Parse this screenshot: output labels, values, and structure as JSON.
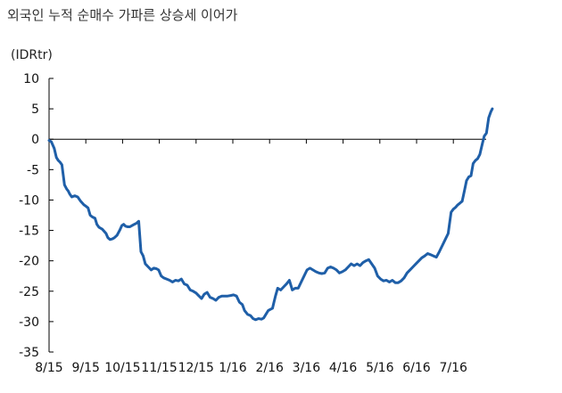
{
  "chart_data": {
    "type": "line",
    "title": "외국인 누적 순매수 가파른 상승세 이어가",
    "ylabel": "(IDRtr)",
    "xlabel": "",
    "ylim": [
      -35,
      10
    ],
    "yticks": [
      10,
      5,
      0,
      -5,
      -10,
      -15,
      -20,
      -25,
      -30,
      -35
    ],
    "ytick_labels": [
      "10",
      "5",
      "0",
      "-5",
      "-10",
      "-15",
      "-20",
      "-25",
      "-30",
      "-35"
    ],
    "xlim": [
      0,
      12.4
    ],
    "categories": [
      "8/15",
      "9/15",
      "10/15",
      "11/15",
      "12/15",
      "1/16",
      "2/16",
      "3/16",
      "4/16",
      "5/16",
      "6/16",
      "7/16"
    ],
    "grid": false,
    "line_color": "#1f5fa8",
    "series": [
      {
        "x": [
          0.0,
          0.06,
          0.14,
          0.2,
          0.25,
          0.3,
          0.35,
          0.42,
          0.48,
          0.52,
          0.56,
          0.62,
          0.7,
          0.78,
          0.86,
          0.95,
          1.0,
          1.06,
          1.12,
          1.18,
          1.25,
          1.3,
          1.36,
          1.45,
          1.55,
          1.6,
          1.66,
          1.72,
          1.78,
          1.85,
          1.92,
          1.98,
          2.03,
          2.08,
          2.14,
          2.2,
          2.26,
          2.32,
          2.38,
          2.44,
          2.5,
          2.56,
          2.62,
          2.7,
          2.78,
          2.85,
          2.92,
          2.98,
          3.05,
          3.12,
          3.2,
          3.28,
          3.36,
          3.44,
          3.52,
          3.6,
          3.68,
          3.76,
          3.84,
          3.92,
          4.0,
          4.08,
          4.15,
          4.22,
          4.3,
          4.38,
          4.46,
          4.54,
          4.62,
          4.7,
          4.78,
          4.86,
          4.94,
          5.02,
          5.1,
          5.18,
          5.26,
          5.32,
          5.4,
          5.48,
          5.55,
          5.62,
          5.7,
          5.78,
          5.84,
          5.9,
          5.96,
          6.02,
          6.08,
          6.12,
          6.16,
          6.22,
          6.3,
          6.38,
          6.46,
          6.54,
          6.62,
          6.7,
          6.78,
          6.86,
          6.94,
          7.02,
          7.1,
          7.18,
          7.26,
          7.34,
          7.42,
          7.5,
          7.58,
          7.66,
          7.74,
          7.82,
          7.9,
          7.98,
          8.06,
          8.14,
          8.22,
          8.3,
          8.38,
          8.46,
          8.54,
          8.62,
          8.7,
          8.78,
          8.86,
          8.94,
          9.02,
          9.1,
          9.18,
          9.26,
          9.34,
          9.42,
          9.5,
          9.58,
          9.66,
          9.74,
          9.82,
          9.9,
          9.98,
          10.06,
          10.14,
          10.22,
          10.3,
          10.38,
          10.46,
          10.54,
          10.62,
          10.7,
          10.78,
          10.86,
          10.94,
          11.0,
          11.06,
          11.12,
          11.18,
          11.24,
          11.3,
          11.36,
          11.42,
          11.48,
          11.54,
          11.6,
          11.66,
          11.72,
          11.78,
          11.84,
          11.9,
          11.96,
          12.02,
          12.06
        ],
        "values": [
          -0.2,
          -0.4,
          -1.5,
          -3.0,
          -3.5,
          -3.8,
          -4.2,
          -7.5,
          -8.2,
          -8.5,
          -9.0,
          -9.5,
          -9.3,
          -9.5,
          -10.2,
          -10.8,
          -11.0,
          -11.3,
          -12.5,
          -12.8,
          -13.0,
          -14.0,
          -14.5,
          -14.8,
          -15.5,
          -16.2,
          -16.5,
          -16.4,
          -16.2,
          -15.8,
          -15.0,
          -14.2,
          -14.0,
          -14.3,
          -14.4,
          -14.4,
          -14.2,
          -14.0,
          -13.8,
          -13.5,
          -18.5,
          -19.2,
          -20.5,
          -21.0,
          -21.5,
          -21.2,
          -21.3,
          -21.5,
          -22.5,
          -22.8,
          -23.0,
          -23.2,
          -23.5,
          -23.2,
          -23.3,
          -23.0,
          -23.8,
          -24.0,
          -24.8,
          -25.0,
          -25.3,
          -25.8,
          -26.2,
          -25.5,
          -25.2,
          -26.0,
          -26.2,
          -26.5,
          -26.0,
          -25.8,
          -25.8,
          -25.8,
          -25.7,
          -25.6,
          -25.8,
          -26.8,
          -27.2,
          -28.2,
          -28.8,
          -29.0,
          -29.5,
          -29.7,
          -29.5,
          -29.6,
          -29.4,
          -28.8,
          -28.2,
          -28.0,
          -27.8,
          -26.8,
          -25.8,
          -24.5,
          -24.8,
          -24.3,
          -23.8,
          -23.2,
          -24.8,
          -24.5,
          -24.5,
          -23.5,
          -22.5,
          -21.5,
          -21.2,
          -21.5,
          -21.8,
          -22.0,
          -22.1,
          -22.0,
          -21.2,
          -21.0,
          -21.2,
          -21.5,
          -22.0,
          -21.8,
          -21.5,
          -21.0,
          -20.5,
          -20.8,
          -20.5,
          -20.8,
          -20.3,
          -20.0,
          -19.8,
          -20.5,
          -21.2,
          -22.5,
          -23.0,
          -23.3,
          -23.2,
          -23.5,
          -23.2,
          -23.6,
          -23.6,
          -23.3,
          -22.8,
          -22.0,
          -21.5,
          -21.0,
          -20.5,
          -20.0,
          -19.5,
          -19.2,
          -18.8,
          -19.0,
          -19.2,
          -19.4,
          -18.5,
          -17.5,
          -16.5,
          -15.5,
          -12.0,
          -11.5,
          -11.2,
          -10.8,
          -10.5,
          -10.2,
          -8.5,
          -6.8,
          -6.2,
          -6.0,
          -4.0,
          -3.5,
          -3.2,
          -2.5,
          -1.0,
          0.5,
          1.0,
          3.5,
          4.5,
          5.0
        ]
      }
    ]
  }
}
